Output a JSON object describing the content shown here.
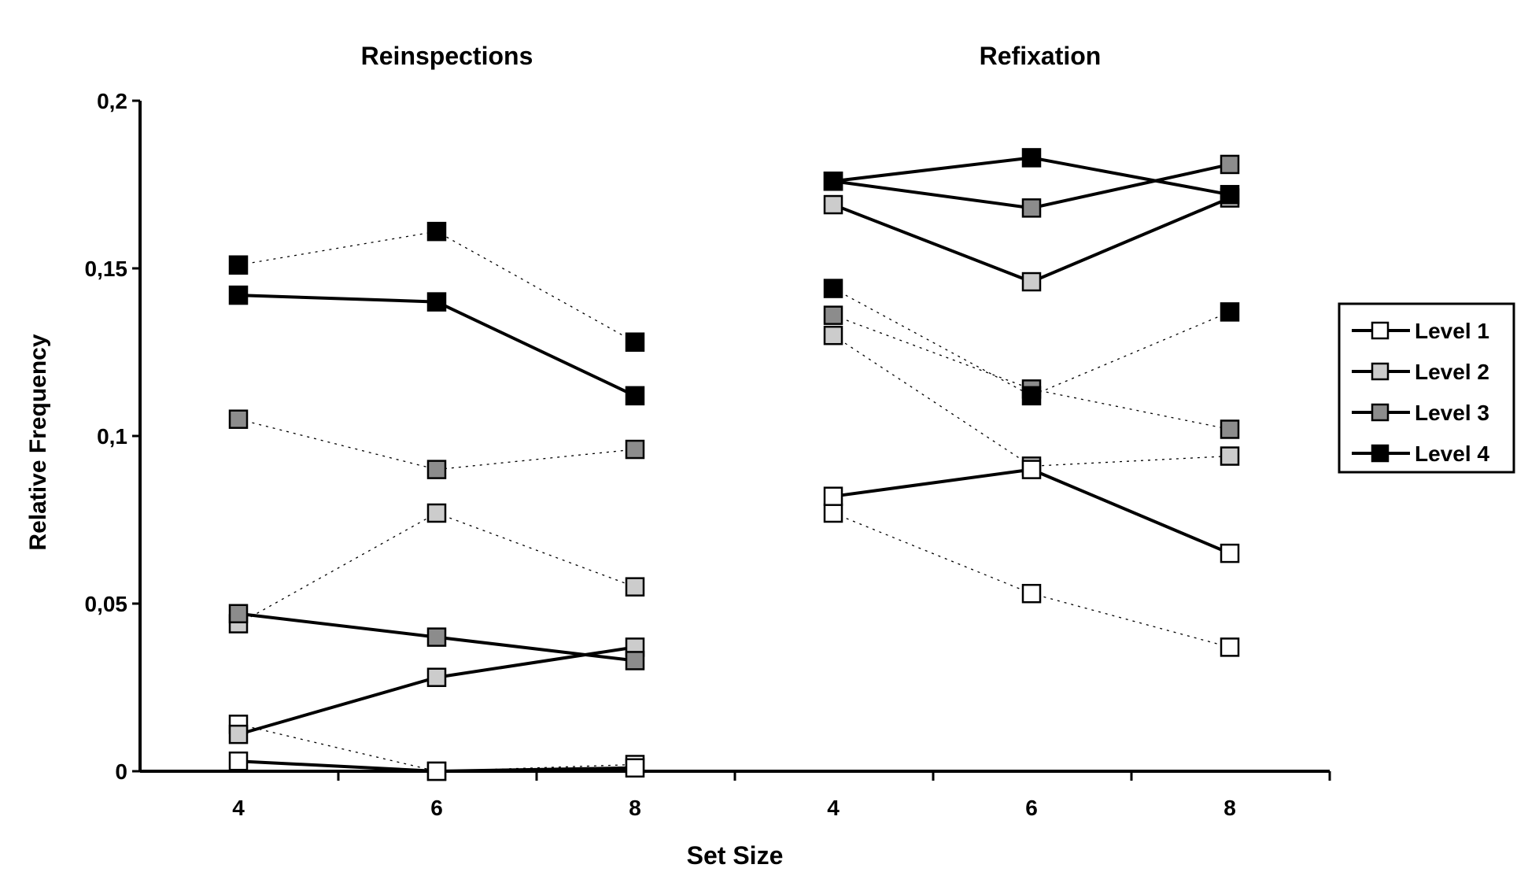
{
  "chart_data": {
    "type": "line",
    "xlabel": "Set Size",
    "ylabel": "Relative Frequency",
    "ylim": [
      0,
      0.2
    ],
    "yticks": [
      0,
      0.05,
      0.1,
      0.15,
      0.2
    ],
    "ytick_labels": [
      "0",
      "0,05",
      "0,1",
      "0,15",
      "0,2"
    ],
    "legend_position": "right",
    "legend": [
      {
        "name": "Level 1",
        "color": "#ffffff"
      },
      {
        "name": "Level 2",
        "color": "#cccccc"
      },
      {
        "name": "Level 3",
        "color": "#8c8c8c"
      },
      {
        "name": "Level 4",
        "color": "#000000"
      }
    ],
    "panels": [
      {
        "title": "Reinspections",
        "categories": [
          "4",
          "6",
          "8"
        ],
        "solid": [
          {
            "name": "Level 1",
            "values": [
              0.003,
              0.0,
              0.001
            ]
          },
          {
            "name": "Level 2",
            "values": [
              0.011,
              0.028,
              0.037
            ]
          },
          {
            "name": "Level 3",
            "values": [
              0.047,
              0.04,
              0.033
            ]
          },
          {
            "name": "Level 4",
            "values": [
              0.142,
              0.14,
              0.112
            ]
          }
        ],
        "dotted": [
          {
            "name": "Level 1",
            "values": [
              0.014,
              0.0,
              0.002
            ]
          },
          {
            "name": "Level 2",
            "values": [
              0.044,
              0.077,
              0.055
            ]
          },
          {
            "name": "Level 3",
            "values": [
              0.105,
              0.09,
              0.096
            ]
          },
          {
            "name": "Level 4",
            "values": [
              0.151,
              0.161,
              0.128
            ]
          }
        ]
      },
      {
        "title": "Refixation",
        "categories": [
          "4",
          "6",
          "8"
        ],
        "solid": [
          {
            "name": "Level 1",
            "values": [
              0.082,
              0.09,
              0.065
            ]
          },
          {
            "name": "Level 2",
            "values": [
              0.169,
              0.146,
              0.171
            ]
          },
          {
            "name": "Level 3",
            "values": [
              0.176,
              0.168,
              0.181
            ]
          },
          {
            "name": "Level 4",
            "values": [
              0.176,
              0.183,
              0.172
            ]
          }
        ],
        "dotted": [
          {
            "name": "Level 1",
            "values": [
              0.077,
              0.053,
              0.037
            ]
          },
          {
            "name": "Level 2",
            "values": [
              0.13,
              0.091,
              0.094
            ]
          },
          {
            "name": "Level 3",
            "values": [
              0.136,
              0.114,
              0.102
            ]
          },
          {
            "name": "Level 4",
            "values": [
              0.144,
              0.112,
              0.137
            ]
          }
        ]
      }
    ]
  }
}
